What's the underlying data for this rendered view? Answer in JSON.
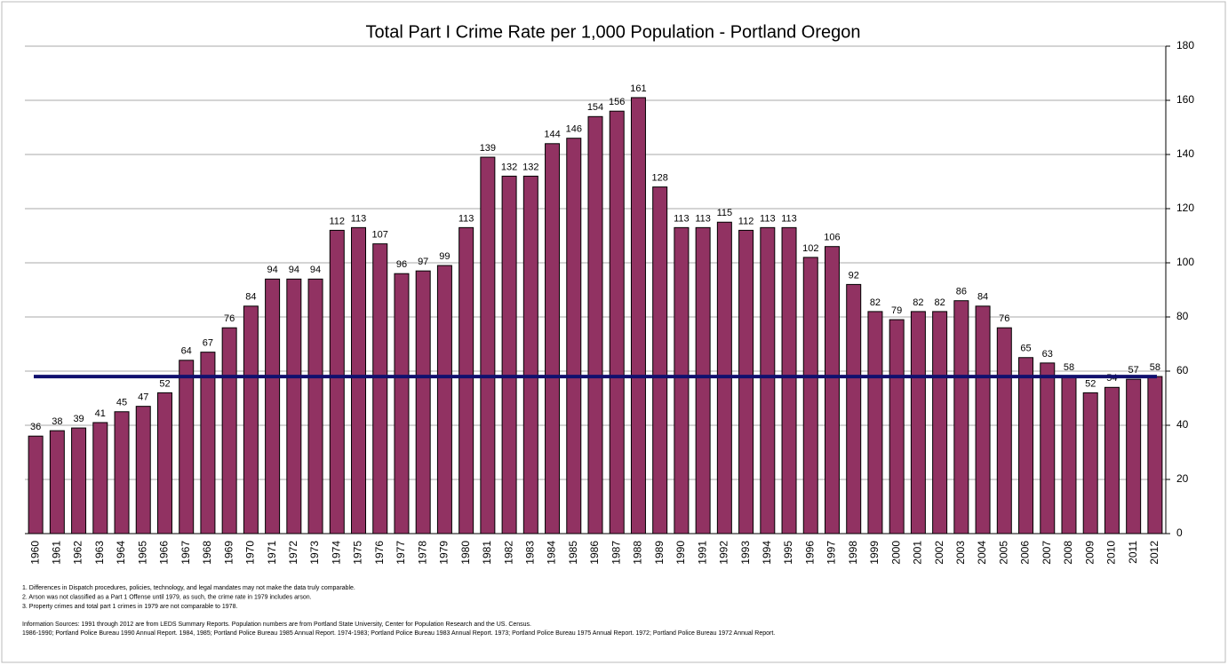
{
  "chart_data": {
    "type": "bar",
    "title": "Total Part I Crime Rate per 1,000 Population - Portland Oregon",
    "categories": [
      "1960",
      "1961",
      "1962",
      "1963",
      "1964",
      "1965",
      "1966",
      "1967",
      "1968",
      "1969",
      "1970",
      "1971",
      "1972",
      "1973",
      "1974",
      "1975",
      "1976",
      "1977",
      "1978",
      "1979",
      "1980",
      "1981",
      "1982",
      "1983",
      "1984",
      "1985",
      "1986",
      "1987",
      "1988",
      "1989",
      "1990",
      "1991",
      "1992",
      "1993",
      "1994",
      "1995",
      "1996",
      "1997",
      "1998",
      "1999",
      "2000",
      "2001",
      "2002",
      "2003",
      "2004",
      "2005",
      "2006",
      "2007",
      "2008",
      "2009",
      "2010",
      "2011",
      "2012"
    ],
    "values": [
      36,
      38,
      39,
      41,
      45,
      47,
      52,
      64,
      67,
      76,
      84,
      94,
      94,
      94,
      112,
      113,
      107,
      96,
      97,
      99,
      113,
      139,
      132,
      132,
      144,
      146,
      154,
      156,
      161,
      128,
      113,
      113,
      115,
      112,
      113,
      113,
      102,
      106,
      92,
      82,
      79,
      82,
      82,
      86,
      84,
      76,
      65,
      63,
      58,
      52,
      54,
      57,
      58
    ],
    "color": "#913262",
    "reference_line": {
      "value": 58,
      "color": "#10106e"
    },
    "ylim": [
      0,
      180
    ],
    "yticks": [
      0,
      20,
      40,
      60,
      80,
      100,
      120,
      140,
      160,
      180
    ],
    "grid": true,
    "y_axis_side": "right",
    "notes": [
      "1. Differences in Dispatch procedures, policies, technology, and legal mandates may not make the data truly comparable.",
      "2. Arson was not classified as a Part 1 Offense until 1979,  as such, the crime rate in 1979 includes arson.",
      "3. Property crimes and total part 1 crimes in 1979 are not comparable to 1978."
    ],
    "sources": [
      "Information Sources: 1991 through 2012 are from LEDS Summary Reports.  Population  numbers are from Portland State University, Center for Population Research and the US. Census.",
      "1986-1990; Portland Police Bureau 1990 Annual Report.  1984, 1985; Portland Police Bureau 1985 Annual Report.  1974-1983; Portland Police Bureau 1983 Annual Report.  1973; Portland Police Bureau 1975  Annual Report.  1972;  Portland Police Bureau 1972 Annual Report."
    ]
  }
}
